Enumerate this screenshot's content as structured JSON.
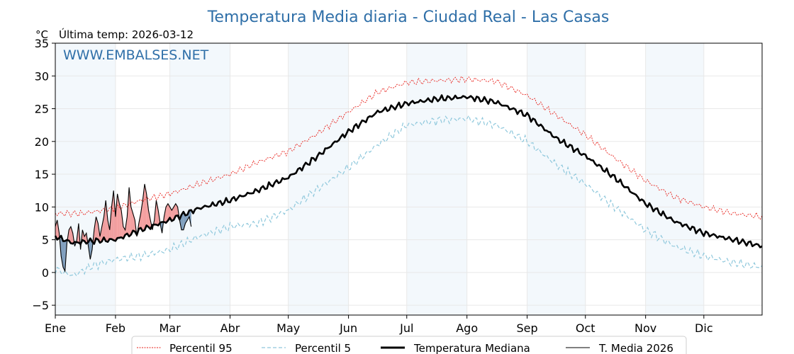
{
  "chart_data": {
    "type": "line",
    "title": "Temperatura Media diaria - Ciudad Real - Las Casas",
    "ylabel": "°C",
    "last_temp_label": "Última temp: 2026-03-12",
    "watermark": "WWW.EMBALSES.NET",
    "xlim": [
      1,
      365
    ],
    "ylim": [
      -6.5,
      35
    ],
    "yticks": [
      -5,
      0,
      5,
      10,
      15,
      20,
      25,
      30,
      35
    ],
    "months": [
      {
        "label": "Ene",
        "start": 1
      },
      {
        "label": "Feb",
        "start": 32
      },
      {
        "label": "Mar",
        "start": 60
      },
      {
        "label": "Abr",
        "start": 91
      },
      {
        "label": "May",
        "start": 121
      },
      {
        "label": "Jun",
        "start": 152
      },
      {
        "label": "Jul",
        "start": 182
      },
      {
        "label": "Ago",
        "start": 213
      },
      {
        "label": "Sep",
        "start": 244
      },
      {
        "label": "Oct",
        "start": 274
      },
      {
        "label": "Nov",
        "start": 305
      },
      {
        "label": "Dic",
        "start": 335
      }
    ],
    "legend": {
      "p95": "Percentil 95",
      "p5": "Percentil 5",
      "median": "Temperatura Mediana",
      "current": "T. Media 2026"
    },
    "colors": {
      "p95": "#e8201a",
      "p5": "#8fc8dc",
      "median": "#000000",
      "current": "#000000",
      "above": "#f08080",
      "below": "#5a82aa",
      "shade": "#f3f8fc",
      "title": "#2f6fa8"
    },
    "series": {
      "median_anchors": [
        [
          1,
          5.5
        ],
        [
          10,
          4.5
        ],
        [
          20,
          4.8
        ],
        [
          32,
          5.0
        ],
        [
          45,
          6.5
        ],
        [
          60,
          8.0
        ],
        [
          75,
          9.8
        ],
        [
          91,
          11.0
        ],
        [
          105,
          12.5
        ],
        [
          121,
          14.5
        ],
        [
          135,
          17.5
        ],
        [
          152,
          21.5
        ],
        [
          167,
          24.5
        ],
        [
          182,
          25.8
        ],
        [
          198,
          26.5
        ],
        [
          213,
          26.8
        ],
        [
          228,
          26.0
        ],
        [
          244,
          24.0
        ],
        [
          259,
          20.5
        ],
        [
          274,
          17.8
        ],
        [
          289,
          14.5
        ],
        [
          305,
          10.5
        ],
        [
          320,
          7.8
        ],
        [
          335,
          6.0
        ],
        [
          350,
          5.0
        ],
        [
          365,
          4.0
        ]
      ],
      "p95_anchors": [
        [
          1,
          9.0
        ],
        [
          15,
          9.0
        ],
        [
          32,
          9.8
        ],
        [
          45,
          11.0
        ],
        [
          60,
          12.0
        ],
        [
          75,
          13.5
        ],
        [
          91,
          15.0
        ],
        [
          105,
          16.8
        ],
        [
          121,
          18.5
        ],
        [
          135,
          21.0
        ],
        [
          152,
          24.5
        ],
        [
          167,
          27.5
        ],
        [
          182,
          29.0
        ],
        [
          198,
          29.3
        ],
        [
          213,
          29.5
        ],
        [
          228,
          29.2
        ],
        [
          244,
          27.0
        ],
        [
          259,
          24.0
        ],
        [
          274,
          21.0
        ],
        [
          289,
          17.5
        ],
        [
          305,
          14.0
        ],
        [
          320,
          11.5
        ],
        [
          335,
          10.0
        ],
        [
          350,
          9.0
        ],
        [
          365,
          8.5
        ]
      ],
      "p5_anchors": [
        [
          1,
          0.5
        ],
        [
          10,
          -0.5
        ],
        [
          20,
          1.0
        ],
        [
          32,
          2.0
        ],
        [
          45,
          2.5
        ],
        [
          60,
          3.5
        ],
        [
          75,
          5.5
        ],
        [
          91,
          7.0
        ],
        [
          105,
          7.5
        ],
        [
          121,
          9.5
        ],
        [
          135,
          12.5
        ],
        [
          152,
          16.0
        ],
        [
          167,
          19.5
        ],
        [
          182,
          22.5
        ],
        [
          198,
          23.2
        ],
        [
          213,
          23.5
        ],
        [
          228,
          22.5
        ],
        [
          244,
          20.0
        ],
        [
          259,
          16.5
        ],
        [
          274,
          13.5
        ],
        [
          289,
          10.0
        ],
        [
          305,
          6.5
        ],
        [
          320,
          4.0
        ],
        [
          335,
          2.5
        ],
        [
          350,
          1.5
        ],
        [
          365,
          0.8
        ]
      ],
      "current_2026": [
        [
          1,
          7.0
        ],
        [
          2,
          8.0
        ],
        [
          3,
          6.0
        ],
        [
          4,
          2.5
        ],
        [
          5,
          0.8
        ],
        [
          6,
          0.2
        ],
        [
          7,
          4.5
        ],
        [
          8,
          6.5
        ],
        [
          9,
          7.0
        ],
        [
          10,
          6.0
        ],
        [
          11,
          4.0
        ],
        [
          12,
          4.8
        ],
        [
          13,
          7.5
        ],
        [
          14,
          3.5
        ],
        [
          15,
          6.5
        ],
        [
          16,
          5.5
        ],
        [
          17,
          6.0
        ],
        [
          18,
          4.0
        ],
        [
          19,
          2.0
        ],
        [
          20,
          3.5
        ],
        [
          21,
          6.5
        ],
        [
          22,
          8.5
        ],
        [
          23,
          7.5
        ],
        [
          24,
          5.5
        ],
        [
          25,
          7.0
        ],
        [
          26,
          8.5
        ],
        [
          27,
          11.0
        ],
        [
          28,
          8.0
        ],
        [
          29,
          6.5
        ],
        [
          30,
          10.0
        ],
        [
          31,
          12.5
        ],
        [
          32,
          8.5
        ],
        [
          33,
          12.0
        ],
        [
          34,
          10.5
        ],
        [
          35,
          9.5
        ],
        [
          36,
          7.0
        ],
        [
          37,
          6.5
        ],
        [
          38,
          8.5
        ],
        [
          39,
          13.0
        ],
        [
          40,
          10.0
        ],
        [
          41,
          9.0
        ],
        [
          42,
          8.0
        ],
        [
          43,
          5.5
        ],
        [
          44,
          7.5
        ],
        [
          45,
          9.0
        ],
        [
          46,
          11.0
        ],
        [
          47,
          13.5
        ],
        [
          48,
          12.0
        ],
        [
          49,
          9.5
        ],
        [
          50,
          8.0
        ],
        [
          51,
          6.5
        ],
        [
          52,
          8.0
        ],
        [
          53,
          11.0
        ],
        [
          54,
          9.5
        ],
        [
          55,
          7.5
        ],
        [
          56,
          6.0
        ],
        [
          57,
          8.5
        ],
        [
          58,
          10.0
        ],
        [
          59,
          10.5
        ],
        [
          60,
          10.0
        ],
        [
          61,
          9.5
        ],
        [
          62,
          10.0
        ],
        [
          63,
          10.5
        ],
        [
          64,
          10.0
        ],
        [
          65,
          8.0
        ],
        [
          66,
          6.5
        ],
        [
          67,
          6.5
        ],
        [
          68,
          7.5
        ],
        [
          69,
          8.0
        ],
        [
          70,
          8.5
        ],
        [
          71,
          7.0
        ]
      ]
    }
  }
}
